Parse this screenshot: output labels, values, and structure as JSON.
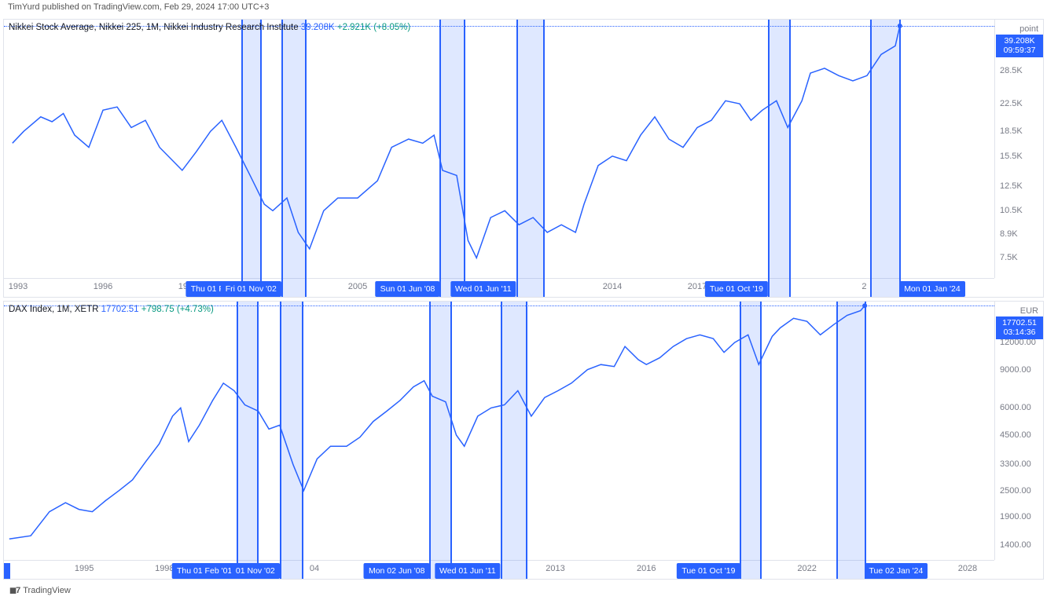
{
  "header": {
    "text": "TimYurd published on TradingView.com, Feb 29, 2024 17:00 UTC+3"
  },
  "footer": {
    "brand": "TradingView"
  },
  "colors": {
    "line": "#2962ff",
    "band_fill": "rgba(41,98,255,0.15)",
    "band_border": "#2962ff",
    "badge_bg": "#2962ff",
    "grid": "#e0e3eb",
    "text_muted": "#787b86",
    "green": "#089981"
  },
  "panels": [
    {
      "id": "nikkei",
      "legend_prefix": "Nikkei Stock Average, Nikkei 225, 1M, Nikkei Industry Research Institute",
      "legend_value": "39.208K",
      "legend_change": "+2.921K (+8.05%)",
      "unit": "point",
      "price_badge": {
        "value": "39.208K",
        "countdown": "09:59:37",
        "y_frac": 0.065
      },
      "y_scale": {
        "type": "log",
        "min": 6500,
        "max": 41000
      },
      "y_ticks": [
        {
          "v": 39208,
          "label": ""
        },
        {
          "v": 28500,
          "label": "28.5K"
        },
        {
          "v": 22500,
          "label": "22.5K"
        },
        {
          "v": 18500,
          "label": "18.5K"
        },
        {
          "v": 15500,
          "label": "15.5K"
        },
        {
          "v": 12500,
          "label": "12.5K"
        },
        {
          "v": 10500,
          "label": "10.5K"
        },
        {
          "v": 8900,
          "label": "8.9K"
        },
        {
          "v": 7500,
          "label": "7.5K"
        }
      ],
      "x_scale": {
        "min": 1992.5,
        "max": 2027.5
      },
      "x_ticks": [
        1993,
        1996,
        1999,
        2005,
        2014,
        2017,
        2026
      ],
      "x_tick_extra": [
        {
          "pos": 2022.9,
          "label": "2"
        }
      ],
      "bands": [
        {
          "start": 2000.9,
          "end": 2001.6,
          "label": "Thu 01 Feb '",
          "label_side": "left"
        },
        {
          "start": 2002.3,
          "end": 2003.2,
          "label": "Fri 01 Nov '02",
          "label_side": "left"
        },
        {
          "start": 2007.9,
          "end": 2008.8,
          "label": "Sun 01 Jun '08",
          "label_side": "left"
        },
        {
          "start": 2010.6,
          "end": 2011.6,
          "label": "Wed 01 Jun '11",
          "label_side": "left"
        },
        {
          "start": 2019.5,
          "end": 2020.3,
          "label": "Tue 01 Oct '19",
          "label_side": "left"
        },
        {
          "start": 2023.1,
          "end": 2024.2,
          "label": "Mon 01 Jan '24",
          "label_side": "right"
        }
      ],
      "series": [
        [
          1992.8,
          17000
        ],
        [
          1993.2,
          18500
        ],
        [
          1993.8,
          20500
        ],
        [
          1994.2,
          19800
        ],
        [
          1994.6,
          21000
        ],
        [
          1995.0,
          18000
        ],
        [
          1995.5,
          16500
        ],
        [
          1996.0,
          21500
        ],
        [
          1996.5,
          22000
        ],
        [
          1997.0,
          19000
        ],
        [
          1997.5,
          20000
        ],
        [
          1998.0,
          16500
        ],
        [
          1998.8,
          14000
        ],
        [
          1999.3,
          16000
        ],
        [
          1999.8,
          18500
        ],
        [
          2000.2,
          20000
        ],
        [
          2000.7,
          16500
        ],
        [
          2001.2,
          13500
        ],
        [
          2001.7,
          11000
        ],
        [
          2002.0,
          10500
        ],
        [
          2002.5,
          11500
        ],
        [
          2002.9,
          9000
        ],
        [
          2003.3,
          8000
        ],
        [
          2003.8,
          10500
        ],
        [
          2004.3,
          11500
        ],
        [
          2005.0,
          11500
        ],
        [
          2005.7,
          13000
        ],
        [
          2006.2,
          16500
        ],
        [
          2006.8,
          17500
        ],
        [
          2007.3,
          17000
        ],
        [
          2007.7,
          18000
        ],
        [
          2008.0,
          14000
        ],
        [
          2008.5,
          13500
        ],
        [
          2008.9,
          8500
        ],
        [
          2009.2,
          7500
        ],
        [
          2009.7,
          10000
        ],
        [
          2010.2,
          10500
        ],
        [
          2010.7,
          9500
        ],
        [
          2011.2,
          10000
        ],
        [
          2011.7,
          9000
        ],
        [
          2012.2,
          9500
        ],
        [
          2012.7,
          9000
        ],
        [
          2013.0,
          11000
        ],
        [
          2013.5,
          14500
        ],
        [
          2014.0,
          15500
        ],
        [
          2014.5,
          15000
        ],
        [
          2015.0,
          18000
        ],
        [
          2015.5,
          20500
        ],
        [
          2016.0,
          17500
        ],
        [
          2016.5,
          16500
        ],
        [
          2017.0,
          19000
        ],
        [
          2017.5,
          20000
        ],
        [
          2018.0,
          23000
        ],
        [
          2018.5,
          22500
        ],
        [
          2018.9,
          20000
        ],
        [
          2019.3,
          21500
        ],
        [
          2019.8,
          23000
        ],
        [
          2020.2,
          19000
        ],
        [
          2020.7,
          23000
        ],
        [
          2021.0,
          28000
        ],
        [
          2021.5,
          29000
        ],
        [
          2022.0,
          27500
        ],
        [
          2022.5,
          26500
        ],
        [
          2023.0,
          27500
        ],
        [
          2023.5,
          32000
        ],
        [
          2024.0,
          34000
        ],
        [
          2024.16,
          39208
        ]
      ]
    },
    {
      "id": "dax",
      "legend_prefix": "DAX Index, 1M, XETR",
      "legend_value": "17702.51",
      "legend_change": "+798.75 (+4.73%)",
      "unit": "EUR",
      "price_badge": {
        "value": "17702.51",
        "countdown": "03:14:36",
        "y_frac": 0.065
      },
      "y_scale": {
        "type": "log",
        "min": 1200,
        "max": 18500
      },
      "y_ticks": [
        {
          "v": 17702,
          "label": ""
        },
        {
          "v": 12000,
          "label": "12000.00"
        },
        {
          "v": 9000,
          "label": "9000.00"
        },
        {
          "v": 6000,
          "label": "6000.00"
        },
        {
          "v": 4500,
          "label": "4500.00"
        },
        {
          "v": 3300,
          "label": "3300.00"
        },
        {
          "v": 2500,
          "label": "2500.00"
        },
        {
          "v": 1900,
          "label": "1900.00"
        },
        {
          "v": 1400,
          "label": "1400.00"
        }
      ],
      "x_scale": {
        "min": 1992.0,
        "max": 2029.0
      },
      "x_ticks": [
        1995,
        1998,
        2016,
        2022,
        2028
      ],
      "x_tick_extra": [
        {
          "pos": 2003.6,
          "label": "04"
        },
        {
          "pos": 2009.5,
          "label": "200"
        },
        {
          "pos": 2009.9,
          "label": "201"
        },
        {
          "pos": 2012.6,
          "label": "2013"
        },
        {
          "pos": 2024.7,
          "label": "5"
        }
      ],
      "bands": [
        {
          "start": 2000.7,
          "end": 2001.5,
          "label": "Thu 01 Feb '01",
          "label_side": "left"
        },
        {
          "start": 2002.3,
          "end": 2003.2,
          "label": "01 Nov '02",
          "label_side": "left"
        },
        {
          "start": 2007.9,
          "end": 2008.75,
          "label": "Mon 02 Jun '08",
          "label_side": "left"
        },
        {
          "start": 2010.55,
          "end": 2011.55,
          "label": "Wed 01 Jun '11",
          "label_side": "left"
        },
        {
          "start": 2019.5,
          "end": 2020.3,
          "label": "Tue 01 Oct '19",
          "label_side": "left"
        },
        {
          "start": 2023.1,
          "end": 2024.2,
          "label": "Tue 02 Jan '24",
          "label_side": "right"
        }
      ],
      "small_blue_box": true,
      "series": [
        [
          1992.2,
          1500
        ],
        [
          1993.0,
          1550
        ],
        [
          1993.7,
          2000
        ],
        [
          1994.3,
          2200
        ],
        [
          1994.8,
          2050
        ],
        [
          1995.3,
          2000
        ],
        [
          1995.8,
          2250
        ],
        [
          1996.3,
          2500
        ],
        [
          1996.8,
          2800
        ],
        [
          1997.3,
          3400
        ],
        [
          1997.8,
          4100
        ],
        [
          1998.3,
          5500
        ],
        [
          1998.6,
          6000
        ],
        [
          1998.9,
          4200
        ],
        [
          1999.3,
          5000
        ],
        [
          1999.8,
          6500
        ],
        [
          2000.2,
          7800
        ],
        [
          2000.6,
          7200
        ],
        [
          2001.0,
          6200
        ],
        [
          2001.5,
          5800
        ],
        [
          2001.9,
          4800
        ],
        [
          2002.3,
          5000
        ],
        [
          2002.8,
          3300
        ],
        [
          2003.2,
          2500
        ],
        [
          2003.7,
          3500
        ],
        [
          2004.2,
          4000
        ],
        [
          2004.8,
          4000
        ],
        [
          2005.3,
          4400
        ],
        [
          2005.8,
          5200
        ],
        [
          2006.3,
          5800
        ],
        [
          2006.8,
          6500
        ],
        [
          2007.3,
          7500
        ],
        [
          2007.7,
          8000
        ],
        [
          2008.0,
          6800
        ],
        [
          2008.5,
          6400
        ],
        [
          2008.9,
          4500
        ],
        [
          2009.2,
          4000
        ],
        [
          2009.7,
          5500
        ],
        [
          2010.2,
          6000
        ],
        [
          2010.7,
          6200
        ],
        [
          2011.2,
          7200
        ],
        [
          2011.7,
          5500
        ],
        [
          2012.2,
          6700
        ],
        [
          2012.7,
          7200
        ],
        [
          2013.2,
          7800
        ],
        [
          2013.8,
          9000
        ],
        [
          2014.3,
          9500
        ],
        [
          2014.8,
          9300
        ],
        [
          2015.2,
          11500
        ],
        [
          2015.7,
          10000
        ],
        [
          2016.0,
          9500
        ],
        [
          2016.5,
          10200
        ],
        [
          2017.0,
          11500
        ],
        [
          2017.5,
          12500
        ],
        [
          2018.0,
          13000
        ],
        [
          2018.5,
          12500
        ],
        [
          2018.9,
          10800
        ],
        [
          2019.3,
          12000
        ],
        [
          2019.8,
          13000
        ],
        [
          2020.2,
          9500
        ],
        [
          2020.7,
          12800
        ],
        [
          2021.0,
          14000
        ],
        [
          2021.5,
          15500
        ],
        [
          2022.0,
          15000
        ],
        [
          2022.5,
          13000
        ],
        [
          2023.0,
          14500
        ],
        [
          2023.5,
          16000
        ],
        [
          2024.0,
          16800
        ],
        [
          2024.16,
          17702
        ]
      ]
    }
  ]
}
